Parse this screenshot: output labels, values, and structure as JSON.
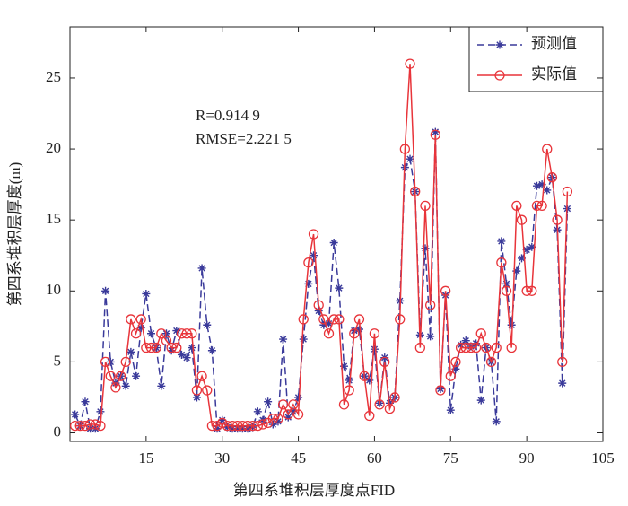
{
  "chart_data": {
    "type": "line",
    "xlabel": "第四系堆积层厚度点FID",
    "ylabel": "第四系堆积层厚度(m)",
    "annotations": [
      "R=0.914 9",
      "RMSE=2.221 5"
    ],
    "legend": "upper right",
    "xlim": [
      0,
      105
    ],
    "xticks": [
      15,
      30,
      45,
      60,
      75,
      90,
      105
    ],
    "ylim": [
      -0.6,
      28.6
    ],
    "yticks": [
      0,
      5,
      10,
      15,
      20,
      25
    ],
    "x": [
      1,
      2,
      3,
      4,
      5,
      6,
      7,
      8,
      9,
      10,
      11,
      12,
      13,
      14,
      15,
      16,
      17,
      18,
      19,
      20,
      21,
      22,
      23,
      24,
      25,
      26,
      27,
      28,
      29,
      30,
      31,
      32,
      33,
      34,
      35,
      36,
      37,
      38,
      39,
      40,
      41,
      42,
      43,
      44,
      45,
      46,
      47,
      48,
      49,
      50,
      51,
      52,
      53,
      54,
      55,
      56,
      57,
      58,
      59,
      60,
      61,
      62,
      63,
      64,
      65,
      66,
      67,
      68,
      69,
      70,
      71,
      72,
      73,
      74,
      75,
      76,
      77,
      78,
      79,
      80,
      81,
      82,
      83,
      84,
      85,
      86,
      87,
      88,
      89,
      90,
      91,
      92,
      93,
      94,
      95,
      96,
      97,
      98
    ],
    "series": [
      {
        "name": "预测值",
        "color": "#3a3a9a",
        "marker": "star",
        "dash": true,
        "values": [
          1.3,
          0.5,
          2.2,
          0.3,
          0.3,
          1.5,
          10,
          5,
          3.5,
          4,
          3.3,
          5.7,
          4,
          7.4,
          9.8,
          7,
          6,
          3.3,
          7,
          5.8,
          7.2,
          5.5,
          5.3,
          6,
          2.5,
          11.6,
          7.6,
          5.8,
          0.3,
          0.9,
          0.4,
          0.3,
          0.3,
          0.3,
          0.3,
          0.4,
          1.5,
          0.9,
          2.2,
          0.6,
          0.8,
          6.6,
          1.1,
          1.5,
          2.5,
          6.6,
          10.5,
          12.5,
          8.6,
          7.6,
          7.7,
          13.4,
          10.2,
          4.7,
          3.7,
          7.2,
          7.3,
          4,
          3.7,
          5.9,
          2.1,
          5.3,
          2.1,
          2.5,
          9.3,
          18.7,
          19.3,
          17,
          6.9,
          13,
          6.8,
          21.2,
          3.1,
          9.7,
          1.6,
          4.5,
          6.2,
          6.5,
          6.1,
          6.3,
          2.3,
          6,
          5,
          0.8,
          13.5,
          10.5,
          7.6,
          11.4,
          12.3,
          12.9,
          13.1,
          17.4,
          17.5,
          17.1,
          18,
          14.3,
          3.5,
          15.8
        ]
      },
      {
        "name": "实际值",
        "color": "#e8343a",
        "marker": "circle",
        "dash": false,
        "values": [
          0.5,
          0.5,
          0.5,
          0.6,
          0.6,
          0.5,
          5,
          4,
          3.2,
          4,
          5,
          8,
          7,
          8,
          6,
          6,
          6,
          7,
          6.5,
          6,
          6,
          7,
          7,
          7,
          3,
          4,
          3,
          0.5,
          0.5,
          0.7,
          0.5,
          0.5,
          0.5,
          0.5,
          0.5,
          0.5,
          0.5,
          0.6,
          0.7,
          1,
          1,
          2,
          1.3,
          2,
          1.3,
          8,
          12,
          14,
          9,
          8,
          7,
          8,
          8,
          2,
          3,
          7,
          8,
          4,
          1.2,
          7,
          2,
          5,
          1.7,
          2.5,
          8,
          20,
          26,
          17,
          6,
          16,
          9,
          21,
          3,
          10,
          4,
          5,
          6,
          6,
          6,
          6,
          7,
          6,
          5,
          6,
          12,
          10,
          6,
          16,
          15,
          10,
          10,
          16,
          16,
          20,
          18,
          15,
          5,
          17
        ]
      }
    ]
  }
}
